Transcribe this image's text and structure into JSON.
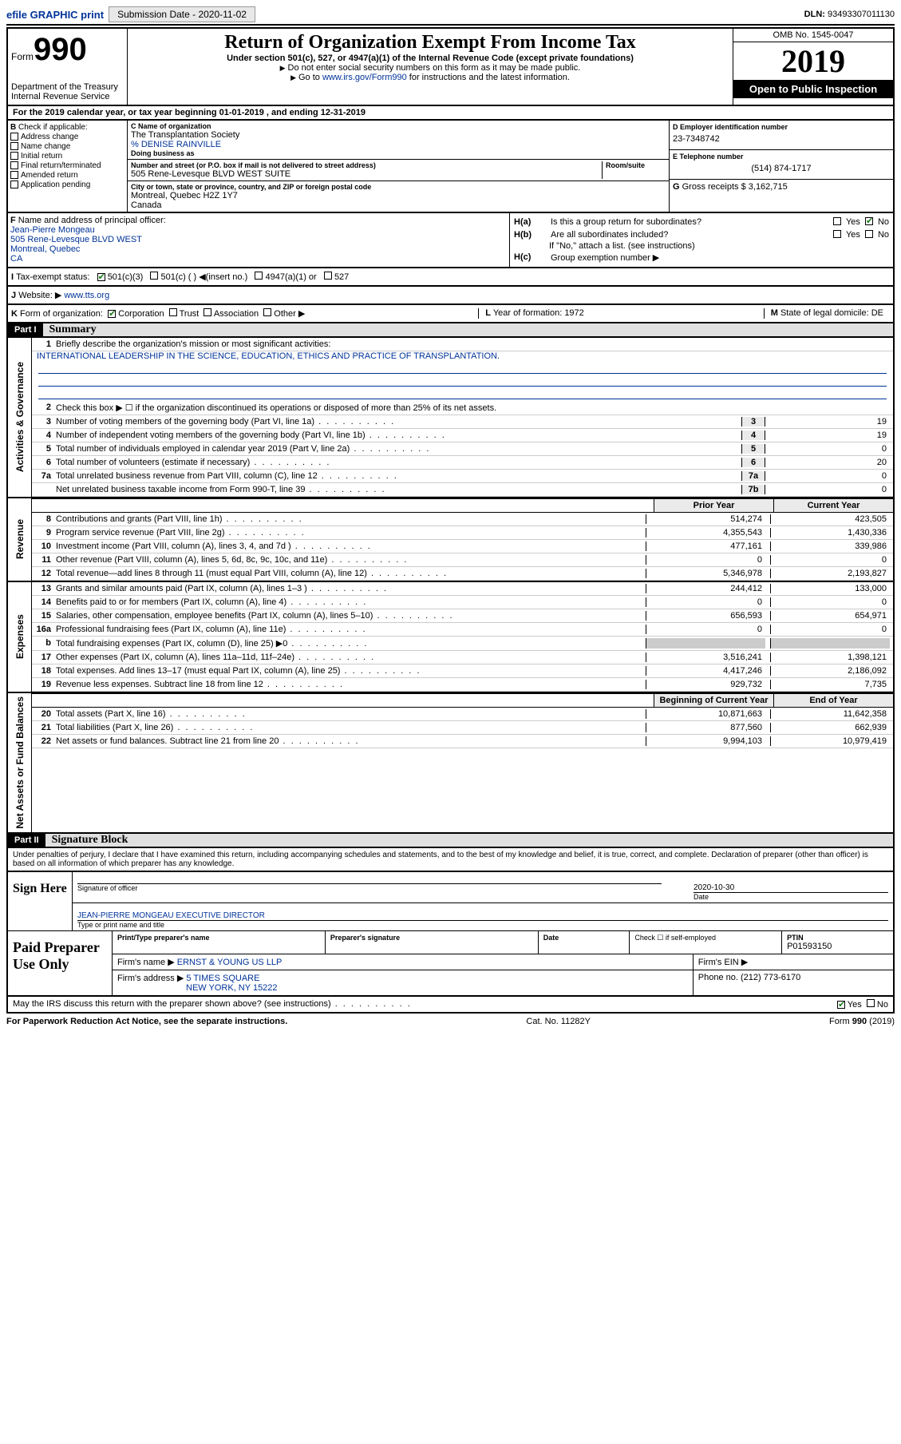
{
  "header": {
    "efile": "efile GRAPHIC print",
    "subdate_lbl": "Submission Date - ",
    "subdate": "2020-11-02",
    "dln_lbl": "DLN: ",
    "dln": "93493307011130"
  },
  "form": {
    "form_word": "Form",
    "form_num": "990",
    "title": "Return of Organization Exempt From Income Tax",
    "subtitle": "Under section 501(c), 527, or 4947(a)(1) of the Internal Revenue Code (except private foundations)",
    "inst1": "Do not enter social security numbers on this form as it may be made public.",
    "inst2_pre": "Go to ",
    "inst2_link": "www.irs.gov/Form990",
    "inst2_post": " for instructions and the latest information.",
    "dept": "Department of the Treasury\nInternal Revenue Service",
    "omb": "OMB No. 1545-0047",
    "year": "2019",
    "open": "Open to Public Inspection"
  },
  "section_a": {
    "line": "For the 2019 calendar year, or tax year beginning 01-01-2019   , and ending 12-31-2019",
    "b_label": "Check if applicable:",
    "b_items": [
      "Address change",
      "Name change",
      "Initial return",
      "Final return/terminated",
      "Amended return",
      "Application pending"
    ],
    "c_label": "Name of organization",
    "c_name": "The Transplantation Society",
    "care_of": "% DENISE RAINVILLE",
    "dba_lbl": "Doing business as",
    "addr_lbl": "Number and street (or P.O. box if mail is not delivered to street address)",
    "room_lbl": "Room/suite",
    "addr": "505 Rene-Levesque BLVD WEST SUITE",
    "city_lbl": "City or town, state or province, country, and ZIP or foreign postal code",
    "city": "Montreal, Quebec  H2Z 1Y7\nCanada",
    "d_label": "Employer identification number",
    "d_ein": "23-7348742",
    "e_label": "Telephone number",
    "e_phone": "(514) 874-1717",
    "g_label": "Gross receipts $ ",
    "g_amt": "3,162,715",
    "f_label": "Name and address of principal officer:",
    "f_name": "Jean-Pierre Mongeau",
    "f_addr": "505 Rene-Levesque BLVD WEST\nMontreal, Quebec\nCA",
    "ha": "Is this a group return for subordinates?",
    "hb": "Are all subordinates included?",
    "h_note": "If \"No,\" attach a list. (see instructions)",
    "hc": "Group exemption number ▶",
    "i_label": "Tax-exempt status:",
    "i_501c3": "501(c)(3)",
    "i_501c": "501(c) (  ) ◀(insert no.)",
    "i_4947": "4947(a)(1) or",
    "i_527": "527",
    "j_label": "Website: ▶",
    "j_site": "www.tts.org",
    "k_label": "Form of organization:",
    "k_items": [
      "Corporation",
      "Trust",
      "Association",
      "Other ▶"
    ],
    "l_label": "Year of formation: ",
    "l_val": "1972",
    "m_label": "State of legal domicile: ",
    "m_val": "DE"
  },
  "part1": {
    "part": "Part I",
    "title": "Summary",
    "mission_lbl": "Briefly describe the organization's mission or most significant activities:",
    "mission": "INTERNATIONAL LEADERSHIP IN THE SCIENCE, EDUCATION, ETHICS AND PRACTICE OF TRANSPLANTATION.",
    "l2": "Check this box ▶ ☐  if the organization discontinued its operations or disposed of more than 25% of its net assets.",
    "gov_lines": [
      {
        "n": "3",
        "d": "Number of voting members of the governing body (Part VI, line 1a)",
        "box": "3",
        "v": "19"
      },
      {
        "n": "4",
        "d": "Number of independent voting members of the governing body (Part VI, line 1b)",
        "box": "4",
        "v": "19"
      },
      {
        "n": "5",
        "d": "Total number of individuals employed in calendar year 2019 (Part V, line 2a)",
        "box": "5",
        "v": "0"
      },
      {
        "n": "6",
        "d": "Total number of volunteers (estimate if necessary)",
        "box": "6",
        "v": "20"
      },
      {
        "n": "7a",
        "d": "Total unrelated business revenue from Part VIII, column (C), line 12",
        "box": "7a",
        "v": "0"
      },
      {
        "n": "",
        "d": "Net unrelated business taxable income from Form 990-T, line 39",
        "box": "7b",
        "v": "0"
      }
    ],
    "hdr_prior": "Prior Year",
    "hdr_curr": "Current Year",
    "rev_lines": [
      {
        "n": "8",
        "d": "Contributions and grants (Part VIII, line 1h)",
        "p": "514,274",
        "c": "423,505"
      },
      {
        "n": "9",
        "d": "Program service revenue (Part VIII, line 2g)",
        "p": "4,355,543",
        "c": "1,430,336"
      },
      {
        "n": "10",
        "d": "Investment income (Part VIII, column (A), lines 3, 4, and 7d )",
        "p": "477,161",
        "c": "339,986"
      },
      {
        "n": "11",
        "d": "Other revenue (Part VIII, column (A), lines 5, 6d, 8c, 9c, 10c, and 11e)",
        "p": "0",
        "c": "0"
      },
      {
        "n": "12",
        "d": "Total revenue—add lines 8 through 11 (must equal Part VIII, column (A), line 12)",
        "p": "5,346,978",
        "c": "2,193,827"
      }
    ],
    "exp_lines": [
      {
        "n": "13",
        "d": "Grants and similar amounts paid (Part IX, column (A), lines 1–3 )",
        "p": "244,412",
        "c": "133,000"
      },
      {
        "n": "14",
        "d": "Benefits paid to or for members (Part IX, column (A), line 4)",
        "p": "0",
        "c": "0"
      },
      {
        "n": "15",
        "d": "Salaries, other compensation, employee benefits (Part IX, column (A), lines 5–10)",
        "p": "656,593",
        "c": "654,971"
      },
      {
        "n": "16a",
        "d": "Professional fundraising fees (Part IX, column (A), line 11e)",
        "p": "0",
        "c": "0"
      },
      {
        "n": "b",
        "d": "Total fundraising expenses (Part IX, column (D), line 25) ▶0",
        "p": "",
        "c": "",
        "grey": true
      },
      {
        "n": "17",
        "d": "Other expenses (Part IX, column (A), lines 11a–11d, 11f–24e)",
        "p": "3,516,241",
        "c": "1,398,121"
      },
      {
        "n": "18",
        "d": "Total expenses. Add lines 13–17 (must equal Part IX, column (A), line 25)",
        "p": "4,417,246",
        "c": "2,186,092"
      },
      {
        "n": "19",
        "d": "Revenue less expenses. Subtract line 18 from line 12",
        "p": "929,732",
        "c": "7,735"
      }
    ],
    "hdr_begin": "Beginning of Current Year",
    "hdr_end": "End of Year",
    "net_lines": [
      {
        "n": "20",
        "d": "Total assets (Part X, line 16)",
        "p": "10,871,663",
        "c": "11,642,358"
      },
      {
        "n": "21",
        "d": "Total liabilities (Part X, line 26)",
        "p": "877,560",
        "c": "662,939"
      },
      {
        "n": "22",
        "d": "Net assets or fund balances. Subtract line 21 from line 20",
        "p": "9,994,103",
        "c": "10,979,419"
      }
    ],
    "vlabels": {
      "gov": "Activities & Governance",
      "rev": "Revenue",
      "exp": "Expenses",
      "net": "Net Assets or Fund Balances"
    }
  },
  "part2": {
    "part": "Part II",
    "title": "Signature Block",
    "perjury": "Under penalties of perjury, I declare that I have examined this return, including accompanying schedules and statements, and to the best of my knowledge and belief, it is true, correct, and complete. Declaration of preparer (other than officer) is based on all information of which preparer has any knowledge.",
    "sign_here": "Sign Here",
    "sig_of_officer": "Signature of officer",
    "date_lbl": "Date",
    "date": "2020-10-30",
    "officer_name": "JEAN-PIERRE MONGEAU  EXECUTIVE DIRECTOR",
    "type_name_lbl": "Type or print name and title",
    "paid_lbl": "Paid Preparer Use Only",
    "prep_name_lbl": "Print/Type preparer's name",
    "prep_sig_lbl": "Preparer's signature",
    "check_self": "Check ☐ if self-employed",
    "ptin_lbl": "PTIN",
    "ptin": "P01593150",
    "firm_name_lbl": "Firm's name   ▶",
    "firm_name": "ERNST & YOUNG US LLP",
    "firm_ein_lbl": "Firm's EIN ▶",
    "firm_addr_lbl": "Firm's address ▶",
    "firm_addr1": "5 TIMES SQUARE",
    "firm_addr2": "NEW YORK, NY  15222",
    "firm_phone_lbl": "Phone no. ",
    "firm_phone": "(212) 773-6170",
    "discuss": "May the IRS discuss this return with the preparer shown above? (see instructions)"
  },
  "footer": {
    "pra": "For Paperwork Reduction Act Notice, see the separate instructions.",
    "cat": "Cat. No. 11282Y",
    "form": "Form 990 (2019)"
  }
}
